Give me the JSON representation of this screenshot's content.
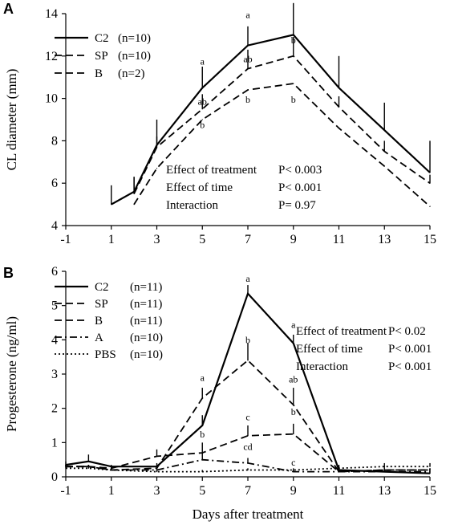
{
  "chart_data": [
    {
      "type": "line",
      "panel": "A",
      "xlabel": "",
      "ylabel": "CL diameter (mm)",
      "xlim": [
        -1,
        15
      ],
      "ylim": [
        4,
        14
      ],
      "xticks": [
        "-1",
        "1",
        "3",
        "5",
        "7",
        "9",
        "11",
        "13",
        "15"
      ],
      "yticks": [
        "4",
        "6",
        "8",
        "10",
        "12",
        "14"
      ],
      "legend": {
        "placement": "top-left"
      },
      "series": [
        {
          "name": "C2",
          "n": "(n=10)",
          "style": "solid",
          "x": [
            1,
            2,
            3,
            5,
            7,
            9,
            11,
            13,
            15
          ],
          "y": [
            5.0,
            5.6,
            7.8,
            10.5,
            12.5,
            13.0,
            10.5,
            8.5,
            6.5
          ],
          "err": [
            0.9,
            0.7,
            1.2,
            1.0,
            0.9,
            1.5,
            1.5,
            1.3,
            1.5
          ]
        },
        {
          "name": "SP",
          "n": "(n=10)",
          "style": "dashed",
          "x": [
            2,
            3,
            5,
            7,
            9,
            11,
            13,
            15
          ],
          "y": [
            5.5,
            7.7,
            9.5,
            11.4,
            12.0,
            9.6,
            7.5,
            6.0
          ],
          "err": [
            0.8,
            0.5,
            0.7,
            0.9,
            0.9,
            0.5,
            0.5,
            0.4
          ]
        },
        {
          "name": "B",
          "n": "(n=2)",
          "style": "dashed",
          "x": [
            2,
            3,
            5,
            7,
            9,
            11,
            13,
            15
          ],
          "y": [
            5.0,
            6.7,
            9.0,
            10.4,
            10.7,
            8.6,
            6.8,
            4.9
          ],
          "err": [
            0,
            0,
            0,
            0,
            0,
            0,
            0,
            0
          ]
        }
      ],
      "significance_labels": [
        {
          "text": "a",
          "x": 5,
          "y": 11.6
        },
        {
          "text": "ab",
          "x": 5,
          "y": 9.7
        },
        {
          "text": "b",
          "x": 5,
          "y": 8.6
        },
        {
          "text": "a",
          "x": 7,
          "y": 13.8
        },
        {
          "text": "ab",
          "x": 7,
          "y": 11.7
        },
        {
          "text": "b",
          "x": 7,
          "y": 9.8
        },
        {
          "text": "a",
          "x": 9,
          "y": 14.8
        },
        {
          "text": "b",
          "x": 9,
          "y": 12.6
        },
        {
          "text": "b",
          "x": 9,
          "y": 9.8
        }
      ],
      "stats": [
        {
          "label": "Effect of treatment",
          "value": "P< 0.003"
        },
        {
          "label": "Effect of time",
          "value": "P< 0.001"
        },
        {
          "label": "Interaction",
          "value": "P= 0.97"
        }
      ]
    },
    {
      "type": "line",
      "panel": "B",
      "xlabel": "Days after treatment",
      "ylabel": "Progesterone (ng/ml)",
      "xlim": [
        -1,
        15
      ],
      "ylim": [
        0,
        6
      ],
      "xticks": [
        "-1",
        "1",
        "3",
        "5",
        "7",
        "9",
        "11",
        "13",
        "15"
      ],
      "yticks": [
        "0",
        "1",
        "2",
        "3",
        "4",
        "5",
        "6"
      ],
      "legend": {
        "placement": "top-left"
      },
      "series": [
        {
          "name": "C2",
          "n": "(n=11)",
          "style": "solid",
          "x": [
            -1,
            0,
            1,
            3,
            5,
            7,
            9,
            11,
            13,
            15
          ],
          "y": [
            0.35,
            0.45,
            0.3,
            0.3,
            1.5,
            5.35,
            3.9,
            0.2,
            0.15,
            0.1
          ],
          "err": [
            0.1,
            0.2,
            0.05,
            0.1,
            0.3,
            0.25,
            0.25,
            0.15,
            0.05,
            0.05
          ]
        },
        {
          "name": "SP",
          "n": "(n=11)",
          "style": "dashed",
          "x": [
            -1,
            0,
            1,
            3,
            5,
            7,
            9,
            11,
            13,
            15
          ],
          "y": [
            0.3,
            0.3,
            0.2,
            0.25,
            2.3,
            3.4,
            2.1,
            0.15,
            0.2,
            0.2
          ],
          "err": [
            0.05,
            0.05,
            0.05,
            0.05,
            0.3,
            0.5,
            0.5,
            0.05,
            0.1,
            0.05
          ]
        },
        {
          "name": "B",
          "n": "(n=11)",
          "style": "dashed",
          "x": [
            -1,
            0,
            1,
            3,
            5,
            7,
            9,
            11,
            13,
            15
          ],
          "y": [
            0.3,
            0.3,
            0.25,
            0.6,
            0.7,
            1.2,
            1.25,
            0.15,
            0.2,
            0.2
          ],
          "err": [
            0.05,
            0.05,
            0.05,
            0.2,
            0.3,
            0.3,
            0.3,
            0.05,
            0.05,
            0.05
          ]
        },
        {
          "name": "A",
          "n": "(n=10)",
          "style": "dashdot",
          "x": [
            -1,
            0,
            1,
            3,
            5,
            7,
            9,
            11,
            13,
            15
          ],
          "y": [
            0.3,
            0.3,
            0.2,
            0.2,
            0.5,
            0.4,
            0.15,
            0.15,
            0.15,
            0.15
          ],
          "err": [
            0.05,
            0.05,
            0.05,
            0.05,
            0.2,
            0.15,
            0.05,
            0.05,
            0.05,
            0.05
          ]
        },
        {
          "name": "PBS",
          "n": "(n=10)",
          "style": "dotted",
          "x": [
            -1,
            0,
            1,
            3,
            5,
            7,
            9,
            11,
            13,
            15
          ],
          "y": [
            0.25,
            0.25,
            0.2,
            0.15,
            0.15,
            0.2,
            0.2,
            0.25,
            0.3,
            0.3
          ],
          "err": [
            0.05,
            0.05,
            0.05,
            0.05,
            0.05,
            0.05,
            0.05,
            0.05,
            0.1,
            0.1
          ]
        }
      ],
      "significance_labels": [
        {
          "text": "a",
          "x": 5,
          "y": 2.8
        },
        {
          "text": "b",
          "x": 5,
          "y": 1.15
        },
        {
          "text": "a",
          "x": 7,
          "y": 5.7
        },
        {
          "text": "b",
          "x": 7,
          "y": 3.9
        },
        {
          "text": "c",
          "x": 7,
          "y": 1.65
        },
        {
          "text": "cd",
          "x": 7,
          "y": 0.78
        },
        {
          "text": "a",
          "x": 9,
          "y": 4.35
        },
        {
          "text": "ab",
          "x": 9,
          "y": 2.75
        },
        {
          "text": "b",
          "x": 9,
          "y": 1.8
        },
        {
          "text": "c",
          "x": 9,
          "y": 0.33
        }
      ],
      "stats": [
        {
          "label": "Effect of treatment",
          "value": "P< 0.02"
        },
        {
          "label": "Effect of time",
          "value": "P< 0.001"
        },
        {
          "label": "Interaction",
          "value": "P< 0.001"
        }
      ]
    }
  ]
}
